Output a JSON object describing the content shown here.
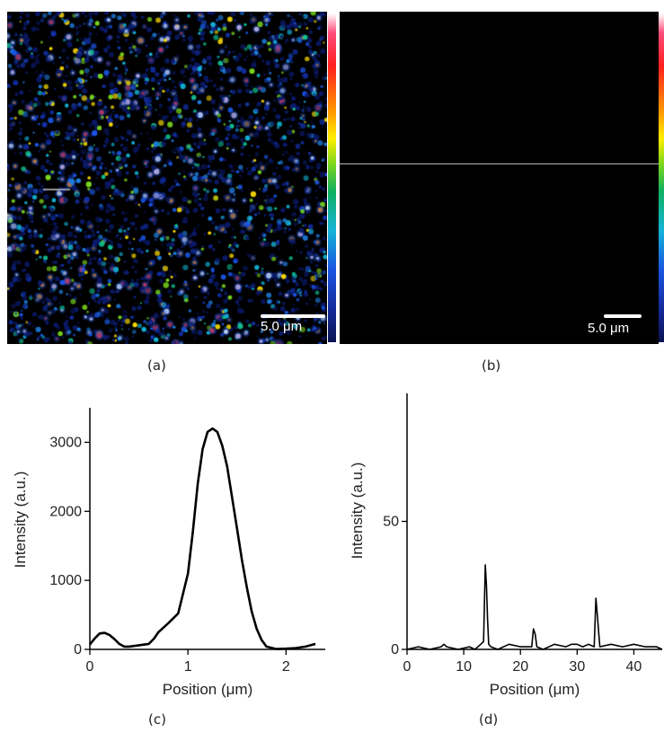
{
  "panels": {
    "a": {
      "caption": "(a)",
      "scalebar": "5.0 μm"
    },
    "b": {
      "caption": "(b)",
      "scalebar": "5.0 μm"
    },
    "c": {
      "caption": "(c)"
    },
    "d": {
      "caption": "(d)"
    }
  },
  "chart_data": [
    {
      "type": "line",
      "panel": "c",
      "xlabel": "Position (μm)",
      "ylabel": "Intensity (a.u.)",
      "xlim": [
        0,
        2.4
      ],
      "ylim": [
        0,
        3500
      ],
      "xticks": [
        0,
        1,
        2
      ],
      "yticks": [
        0,
        1000,
        2000,
        3000
      ],
      "x": [
        0,
        0.05,
        0.1,
        0.15,
        0.2,
        0.25,
        0.3,
        0.35,
        0.4,
        0.5,
        0.6,
        0.65,
        0.7,
        0.8,
        0.9,
        1.0,
        1.05,
        1.1,
        1.15,
        1.2,
        1.25,
        1.3,
        1.35,
        1.4,
        1.45,
        1.5,
        1.55,
        1.6,
        1.65,
        1.7,
        1.75,
        1.8,
        1.9,
        2.0,
        2.1,
        2.2,
        2.3
      ],
      "series": [
        {
          "values": [
            70,
            160,
            230,
            240,
            210,
            150,
            80,
            40,
            40,
            60,
            80,
            150,
            250,
            380,
            520,
            1100,
            1700,
            2400,
            2900,
            3150,
            3200,
            3150,
            2950,
            2650,
            2200,
            1750,
            1300,
            900,
            550,
            300,
            140,
            40,
            5,
            10,
            20,
            40,
            80
          ]
        }
      ]
    },
    {
      "type": "line",
      "panel": "d",
      "xlabel": "Position (μm)",
      "ylabel": "Intensity (a.u.)",
      "xlim": [
        0,
        45
      ],
      "ylim": [
        0,
        100
      ],
      "xticks": [
        0,
        10,
        20,
        30,
        40
      ],
      "yticks": [
        0,
        50
      ],
      "x": [
        0,
        2,
        4,
        6,
        6.5,
        7,
        9,
        11,
        12,
        13,
        13.5,
        13.8,
        14,
        14.2,
        14.4,
        14.8,
        16,
        18,
        20,
        22,
        22.3,
        22.6,
        22.9,
        24,
        26,
        28,
        29,
        30,
        31,
        32,
        33,
        33.3,
        33.6,
        34,
        36,
        38,
        40,
        42,
        44,
        45
      ],
      "series": [
        {
          "values": [
            0,
            1,
            0,
            1,
            2,
            1,
            0,
            1,
            0,
            2,
            3,
            33,
            25,
            12,
            2,
            1,
            0,
            2,
            1,
            1,
            8,
            6,
            1,
            0,
            2,
            1,
            2,
            2,
            1,
            2,
            1,
            20,
            12,
            1,
            2,
            1,
            2,
            1,
            1,
            0
          ]
        }
      ]
    }
  ]
}
